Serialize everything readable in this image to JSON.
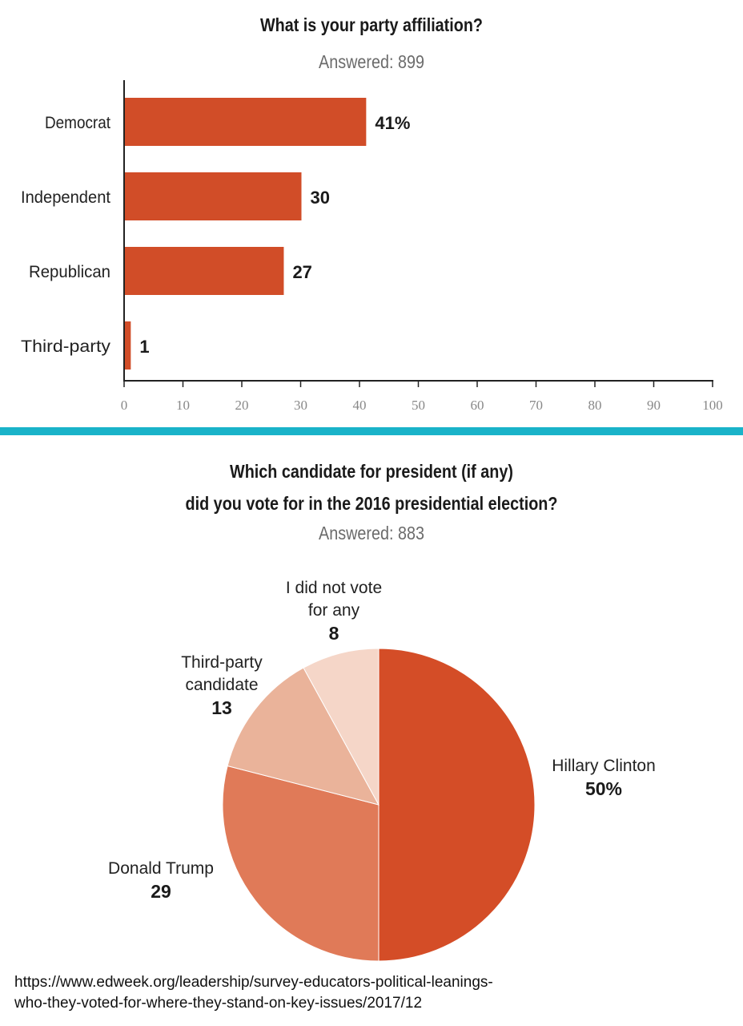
{
  "bar_chart": {
    "title": "What is your party affiliation?",
    "answered_label": "Answered:",
    "answered_value": "899"
  },
  "pie_chart": {
    "title_line1": "Which candidate for president (if any)",
    "title_line2": "did you vote for in the 2016 presidential election?",
    "answered_label": "Answered:",
    "answered_value": "883"
  },
  "source": {
    "line1": "https://www.edweek.org/leadership/survey-educators-political-leanings-",
    "line2": "who-they-voted-for-where-they-stand-on-key-issues/2017/12"
  },
  "colors": {
    "bar": "#d14d28",
    "divider": "#1ab3c9",
    "pie": [
      "#d44d27",
      "#e07a58",
      "#eab39a",
      "#f5d6c8"
    ]
  },
  "chart_data": [
    {
      "type": "bar",
      "orientation": "horizontal",
      "title": "What is your party affiliation?",
      "categories": [
        "Democrat",
        "Independent",
        "Republican",
        "Third-party"
      ],
      "values": [
        41,
        30,
        27,
        1
      ],
      "value_labels": [
        "41%",
        "30",
        "27",
        "1"
      ],
      "xlim": [
        0,
        100
      ],
      "xticks": [
        0,
        10,
        20,
        30,
        40,
        50,
        60,
        70,
        80,
        90,
        100
      ],
      "xlabel": "",
      "ylabel": ""
    },
    {
      "type": "pie",
      "title": "Which candidate for president (if any) did you vote for in the 2016 presidential election?",
      "slices": [
        {
          "label": [
            "Hillary Clinton"
          ],
          "value": 50,
          "value_label": "50%"
        },
        {
          "label": [
            "Donald Trump"
          ],
          "value": 29,
          "value_label": "29"
        },
        {
          "label": [
            "Third-party",
            "candidate"
          ],
          "value": 13,
          "value_label": "13"
        },
        {
          "label": [
            "I did not vote",
            "for any"
          ],
          "value": 8,
          "value_label": "8"
        }
      ]
    }
  ]
}
